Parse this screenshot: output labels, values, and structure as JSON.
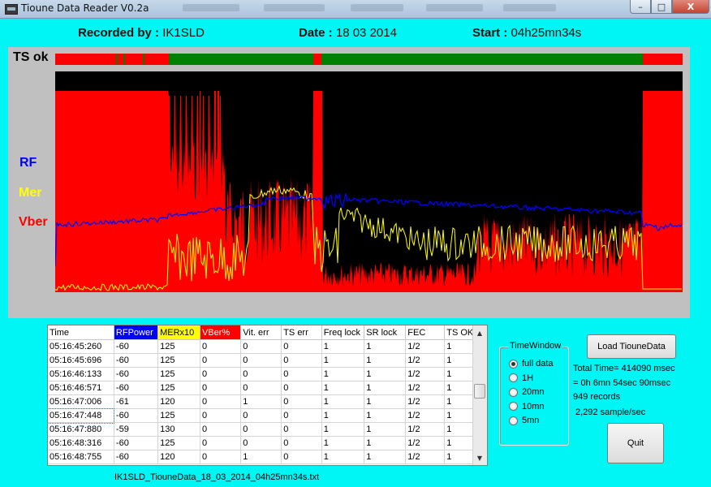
{
  "window": {
    "title": "Tioune Data Reader V0.2a",
    "btn_min": "–",
    "btn_max": "□",
    "btn_close": "X"
  },
  "header": {
    "recorded_label": "Recorded by :",
    "recorded_value": "IK1SLD",
    "date_label": "Date :",
    "date_value": "18 03 2014",
    "start_label": "Start :",
    "start_value": "04h25mn34s"
  },
  "plot": {
    "ts_label": "TS ok",
    "legend": {
      "rf": "RF",
      "mer": "Mer",
      "vber": "Vber"
    },
    "colors": {
      "rf": "#0000ff",
      "mer": "#ffff00",
      "vber": "#ff0000",
      "ts_ok": "#008000",
      "ts_fail": "#ff0000",
      "bg": "#000000"
    }
  },
  "table": {
    "columns": [
      {
        "label": "Time",
        "bg": "#ffffff",
        "color": "#000000"
      },
      {
        "label": "RFPower",
        "bg": "#0000ff",
        "color": "#ffffff"
      },
      {
        "label": "MERx10",
        "bg": "#ffff00",
        "color": "#000000"
      },
      {
        "label": "VBer%",
        "bg": "#ff0000",
        "color": "#ffffff"
      },
      {
        "label": "Vit. err",
        "bg": "#ffffff",
        "color": "#000000"
      },
      {
        "label": "TS err",
        "bg": "#ffffff",
        "color": "#000000"
      },
      {
        "label": "Freq lock",
        "bg": "#ffffff",
        "color": "#000000"
      },
      {
        "label": "SR lock",
        "bg": "#ffffff",
        "color": "#000000"
      },
      {
        "label": "FEC",
        "bg": "#ffffff",
        "color": "#000000"
      },
      {
        "label": "TS OK",
        "bg": "#ffffff",
        "color": "#000000"
      }
    ],
    "rows": [
      [
        "05:16:45:260",
        "-60",
        "125",
        "0",
        "0",
        "0",
        "1",
        "1",
        "1/2",
        "1"
      ],
      [
        "05:16:45:696",
        "-60",
        "125",
        "0",
        "0",
        "0",
        "1",
        "1",
        "1/2",
        "1"
      ],
      [
        "05:16:46:133",
        "-60",
        "125",
        "0",
        "0",
        "0",
        "1",
        "1",
        "1/2",
        "1"
      ],
      [
        "05:16:46:571",
        "-60",
        "125",
        "0",
        "0",
        "0",
        "1",
        "1",
        "1/2",
        "1"
      ],
      [
        "05:16:47:006",
        "-61",
        "120",
        "0",
        "1",
        "0",
        "1",
        "1",
        "1/2",
        "1"
      ],
      [
        "05:16:47:448",
        "-60",
        "125",
        "0",
        "0",
        "0",
        "1",
        "1",
        "1/2",
        "1"
      ],
      [
        "05:16:47:880",
        "-59",
        "130",
        "0",
        "0",
        "0",
        "1",
        "1",
        "1/2",
        "1"
      ],
      [
        "05:16:48:316",
        "-60",
        "125",
        "0",
        "0",
        "0",
        "1",
        "1",
        "1/2",
        "1"
      ],
      [
        "05:16:48:755",
        "-60",
        "120",
        "0",
        "1",
        "0",
        "1",
        "1",
        "1/2",
        "1"
      ]
    ],
    "scroll_up": "▲",
    "scroll_down": "▼"
  },
  "filename": "IK1SLD_TiouneData_18_03_2014_04h25mn34s.txt",
  "time_window": {
    "legend": "TimeWindow",
    "options": [
      "full data",
      "1H",
      "20mn",
      "10mn",
      "5mn"
    ],
    "selected": "full data"
  },
  "buttons": {
    "load": "Load TiouneData",
    "quit": "Quit"
  },
  "info": {
    "total_time": "Total Time= 414090 msec",
    "duration": "= 0h 6mn 54sec 90msec",
    "records": "949 records",
    "rate": "2,292 sample/sec"
  }
}
